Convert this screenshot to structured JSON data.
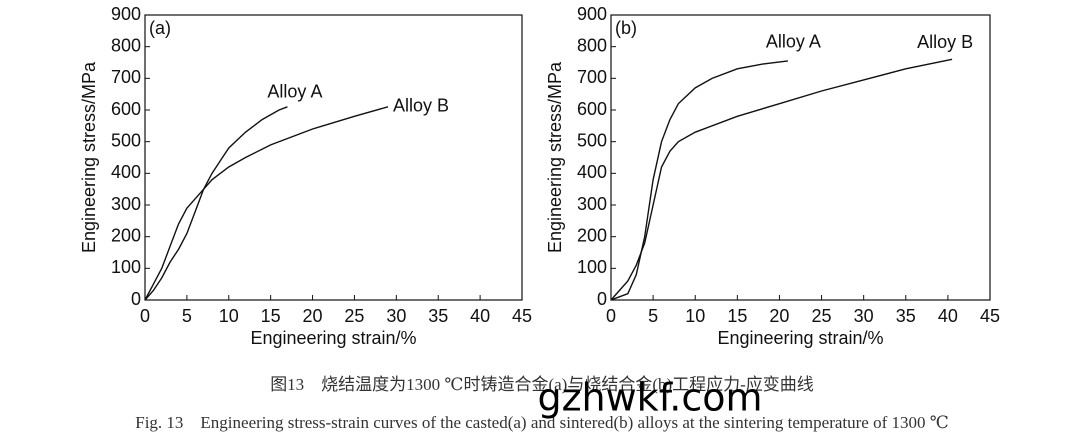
{
  "chart_data": [
    {
      "type": "line",
      "panel_label": "(a)",
      "x_label": "Engineering strain/%",
      "y_label": "Engineering stress/MPa",
      "xlim": [
        0,
        45
      ],
      "ylim": [
        0,
        900
      ],
      "xticks": [
        0,
        5,
        10,
        15,
        20,
        25,
        30,
        35,
        40,
        45
      ],
      "yticks": [
        0,
        100,
        200,
        300,
        400,
        500,
        600,
        700,
        800,
        900
      ],
      "series": [
        {
          "name": "Alloy A",
          "color": "#111111",
          "x": [
            0,
            1,
            2,
            3,
            4,
            5,
            6,
            7,
            8,
            9,
            10,
            12,
            14,
            16,
            17
          ],
          "values": [
            0,
            30,
            70,
            120,
            160,
            210,
            280,
            350,
            400,
            440,
            480,
            530,
            570,
            600,
            610
          ]
        },
        {
          "name": "Alloy B",
          "color": "#111111",
          "x": [
            0,
            1,
            2,
            3,
            4,
            5,
            6,
            7,
            8,
            10,
            12,
            15,
            20,
            25,
            29
          ],
          "values": [
            0,
            50,
            100,
            170,
            240,
            290,
            320,
            350,
            380,
            420,
            450,
            490,
            540,
            580,
            610
          ]
        }
      ]
    },
    {
      "type": "line",
      "panel_label": "(b)",
      "x_label": "Engineering strain/%",
      "y_label": "Engineering stress/MPa",
      "xlim": [
        0,
        45
      ],
      "ylim": [
        0,
        900
      ],
      "xticks": [
        0,
        5,
        10,
        15,
        20,
        25,
        30,
        35,
        40,
        45
      ],
      "yticks": [
        0,
        100,
        200,
        300,
        400,
        500,
        600,
        700,
        800,
        900
      ],
      "series": [
        {
          "name": "Alloy A",
          "color": "#111111",
          "x": [
            0,
            1,
            2,
            3,
            4,
            5,
            6,
            7,
            8,
            10,
            12,
            15,
            18,
            21
          ],
          "values": [
            0,
            10,
            20,
            80,
            200,
            380,
            500,
            570,
            620,
            670,
            700,
            730,
            745,
            755
          ]
        },
        {
          "name": "Alloy B",
          "color": "#111111",
          "x": [
            0,
            1,
            2,
            3,
            4,
            5,
            6,
            7,
            8,
            10,
            15,
            20,
            25,
            30,
            35,
            40.5
          ],
          "values": [
            0,
            30,
            60,
            110,
            180,
            300,
            420,
            470,
            500,
            530,
            580,
            620,
            660,
            695,
            730,
            760
          ]
        }
      ]
    }
  ],
  "figure": {
    "caption_zh": "图13　烧结温度为1300 ℃时铸造合金(a)与烧结合金(b)工程应力-应变曲线",
    "caption_en": "Fig. 13　Engineering stress-strain curves of the casted(a) and sintered(b) alloys at the sintering temperature of 1300 ℃",
    "watermark": "gzhwkf.com"
  }
}
